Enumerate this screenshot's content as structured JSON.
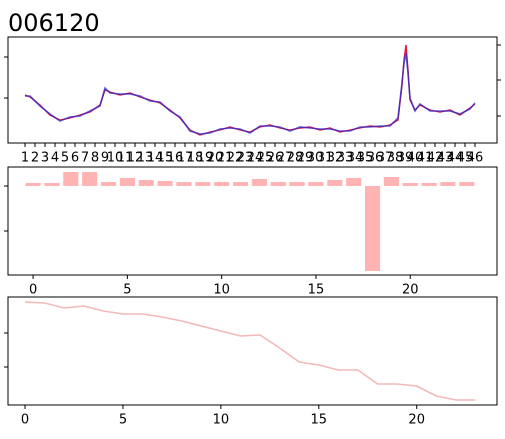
{
  "chart_data": [
    {
      "type": "line",
      "title": "006120",
      "x": [
        25,
        30,
        40,
        50,
        60,
        70,
        80,
        90,
        100,
        105,
        110,
        120,
        130,
        140,
        150,
        160,
        170,
        180,
        190,
        200,
        210,
        220,
        230,
        240,
        250,
        260,
        270,
        280,
        290,
        300,
        310,
        320,
        330,
        340,
        350,
        360,
        370,
        380,
        390,
        398,
        402,
        404,
        406,
        408,
        410,
        415,
        420,
        430,
        440,
        450,
        460,
        470,
        475
      ],
      "series": [
        {
          "color": "#e0143c",
          "values": [
            48,
            46,
            38,
            28,
            23,
            25,
            28,
            31,
            38,
            53,
            51,
            48,
            50,
            46,
            43,
            40,
            33,
            25,
            13,
            8,
            11,
            13,
            16,
            13,
            11,
            16,
            18,
            15,
            13,
            15,
            16,
            13,
            15,
            11,
            13,
            15,
            17,
            16,
            18,
            23,
            58,
            83,
            98,
            73,
            43,
            33,
            38,
            33,
            31,
            33,
            28,
            35,
            39
          ]
        },
        {
          "color": "#2a2ad0",
          "values": [
            47,
            47,
            37,
            29,
            22,
            26,
            27,
            32,
            37,
            55,
            50,
            49,
            49,
            47,
            42,
            41,
            32,
            26,
            12,
            9,
            10,
            14,
            15,
            14,
            10,
            17,
            17,
            16,
            12,
            16,
            15,
            14,
            14,
            12,
            12,
            16,
            16,
            17,
            17,
            25,
            60,
            80,
            90,
            70,
            45,
            32,
            39,
            32,
            32,
            32,
            29,
            34,
            40
          ]
        }
      ],
      "xlim": [
        8,
        497
      ],
      "ylim": [
        0,
        106
      ],
      "yticks": [
        45,
        86
      ],
      "y2lim": [
        0,
        106
      ],
      "y2ticks": [
        27,
        63,
        98
      ],
      "xticks": [
        {
          "value": 25,
          "label": "1"
        },
        {
          "value": 35,
          "label": "2"
        },
        {
          "value": 45,
          "label": "3"
        },
        {
          "value": 55,
          "label": "4"
        },
        {
          "value": 65,
          "label": "5"
        },
        {
          "value": 75,
          "label": "6"
        },
        {
          "value": 85,
          "label": "7"
        },
        {
          "value": 95,
          "label": "8"
        },
        {
          "value": 105,
          "label": "9"
        },
        {
          "value": 115,
          "label": "10"
        },
        {
          "value": 125,
          "label": "11"
        },
        {
          "value": 135,
          "label": "12"
        },
        {
          "value": 145,
          "label": "13"
        },
        {
          "value": 155,
          "label": "14"
        },
        {
          "value": 165,
          "label": "15"
        },
        {
          "value": 175,
          "label": "16"
        },
        {
          "value": 185,
          "label": "17"
        },
        {
          "value": 195,
          "label": "18"
        },
        {
          "value": 205,
          "label": "19"
        },
        {
          "value": 215,
          "label": "20"
        },
        {
          "value": 225,
          "label": "21"
        },
        {
          "value": 235,
          "label": "22"
        },
        {
          "value": 245,
          "label": "23"
        },
        {
          "value": 255,
          "label": "24"
        },
        {
          "value": 265,
          "label": "25"
        },
        {
          "value": 275,
          "label": "26"
        },
        {
          "value": 285,
          "label": "27"
        },
        {
          "value": 295,
          "label": "28"
        },
        {
          "value": 305,
          "label": "29"
        },
        {
          "value": 315,
          "label": "30"
        },
        {
          "value": 325,
          "label": "31"
        },
        {
          "value": 335,
          "label": "32"
        },
        {
          "value": 345,
          "label": "33"
        },
        {
          "value": 355,
          "label": "34"
        },
        {
          "value": 365,
          "label": "35"
        },
        {
          "value": 375,
          "label": "36"
        },
        {
          "value": 385,
          "label": "37"
        },
        {
          "value": 395,
          "label": "38"
        },
        {
          "value": 405,
          "label": "39"
        },
        {
          "value": 415,
          "label": "40"
        },
        {
          "value": 425,
          "label": "41"
        },
        {
          "value": 435,
          "label": "42"
        },
        {
          "value": 445,
          "label": "43"
        },
        {
          "value": 455,
          "label": "44"
        },
        {
          "value": 465,
          "label": "45"
        },
        {
          "value": 475,
          "label": "46"
        }
      ]
    },
    {
      "type": "bar",
      "color": "#ffb3b3",
      "x": [
        0,
        1,
        2,
        3,
        4,
        5,
        6,
        7,
        8,
        9,
        10,
        11,
        12,
        13,
        14,
        15,
        16,
        17,
        18,
        19,
        20,
        21,
        22,
        23
      ],
      "values": [
        3,
        3,
        14,
        14,
        4,
        8,
        6,
        5,
        4,
        4,
        4,
        4,
        7,
        4,
        4,
        4,
        6,
        8,
        -85,
        9,
        3,
        3,
        4,
        4
      ],
      "xlim": [
        -1.33,
        24.6
      ],
      "ylim": [
        -89,
        19
      ],
      "yticks": [
        -45,
        0
      ],
      "xticks": [
        0,
        5,
        10,
        15,
        20
      ]
    },
    {
      "type": "line",
      "x": [
        0,
        1,
        2,
        3,
        4,
        5,
        6,
        7,
        8,
        9,
        10,
        11,
        12,
        13,
        14,
        15,
        16,
        17,
        18,
        19,
        20,
        21,
        22,
        23
      ],
      "series": [
        {
          "color": "#f4b8b8",
          "values": [
            103,
            102,
            97,
            99,
            94,
            91,
            91,
            88,
            84,
            79,
            74,
            69,
            70,
            57,
            43,
            40,
            35,
            35,
            21,
            21,
            19,
            9,
            5,
            5
          ]
        }
      ],
      "xlim": [
        -0.87,
        24.1
      ],
      "ylim": [
        0,
        108
      ],
      "yticks": [
        38,
        72
      ],
      "xticks": [
        0,
        5,
        10,
        15,
        20
      ]
    }
  ]
}
